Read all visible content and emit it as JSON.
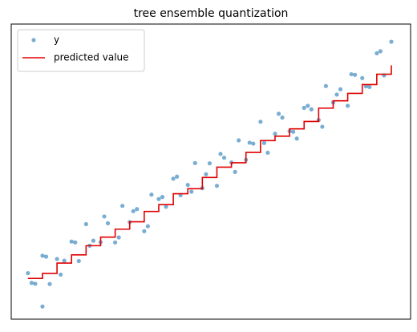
{
  "chart_data": {
    "type": "scatter",
    "title": "tree ensemble quantization",
    "xlim": [
      -4.6,
      105.3
    ],
    "ylim": [
      0,
      100
    ],
    "xticks": [],
    "yticks": [],
    "grid": false,
    "legend": "upper left",
    "series": [
      {
        "name": "y",
        "type": "scatter",
        "color": "#1f77b4",
        "opacity": 0.6,
        "x": [
          0,
          2,
          4,
          6,
          8,
          10,
          12,
          14,
          16,
          18,
          20,
          22,
          24,
          26,
          28,
          30,
          32,
          34,
          36,
          38,
          40,
          42,
          44,
          46,
          48,
          50,
          52,
          54,
          56,
          58,
          60,
          62,
          64,
          66,
          68,
          70,
          72,
          74,
          76,
          78,
          80,
          82,
          84,
          86,
          88,
          90,
          92,
          94,
          96,
          98,
          100,
          1,
          5,
          9,
          13,
          17,
          21,
          25,
          29,
          33,
          37,
          41,
          45,
          49,
          53,
          57,
          61,
          65,
          69,
          73,
          77,
          81,
          85,
          89,
          93,
          97,
          4
        ],
        "values": [
          15.6,
          12.0,
          21.5,
          11.9,
          20.4,
          19.8,
          26.3,
          19.7,
          32.2,
          26.6,
          26.1,
          32.5,
          26.0,
          38.4,
          32.9,
          37.3,
          29.8,
          42.2,
          40.7,
          38.1,
          47.6,
          42.0,
          45.5,
          52.9,
          44.4,
          52.8,
          45.2,
          54.7,
          53.1,
          60.6,
          54.0,
          59.5,
          66.9,
          56.4,
          62.8,
          68.3,
          63.7,
          61.2,
          71.6,
          71.1,
          67.5,
          79.0,
          73.4,
          77.9,
          72.3,
          82.8,
          81.7,
          78.7,
          90.1,
          82.6,
          94.0,
          12.3,
          21.2,
          15.1,
          26.0,
          24.9,
          34.8,
          27.7,
          36.6,
          31.5,
          41.4,
          48.3,
          43.2,
          49.1,
          56.0,
          49.9,
          59.8,
          59.7,
          69.6,
          63.5,
          72.3,
          65.2,
          76.1,
          83.0,
          78.9,
          90.8,
          4.3
        ]
      },
      {
        "name": "predicted value",
        "type": "line",
        "step": "post",
        "color": "#e00000",
        "x": [
          0,
          4,
          8,
          12,
          16,
          20,
          24,
          28,
          32,
          36,
          40,
          44,
          48,
          52,
          56,
          60,
          64,
          68,
          72,
          76,
          80,
          84,
          88,
          92,
          96,
          100
        ],
        "values": [
          13.8,
          15.5,
          19.0,
          21.8,
          24.9,
          27.8,
          30.5,
          33.0,
          36.5,
          38.8,
          42.5,
          44.2,
          48.0,
          51.5,
          53.0,
          56.5,
          60.5,
          62.0,
          64.5,
          67.0,
          71.5,
          74.0,
          76.5,
          79.5,
          83.0,
          86.0
        ]
      }
    ]
  }
}
